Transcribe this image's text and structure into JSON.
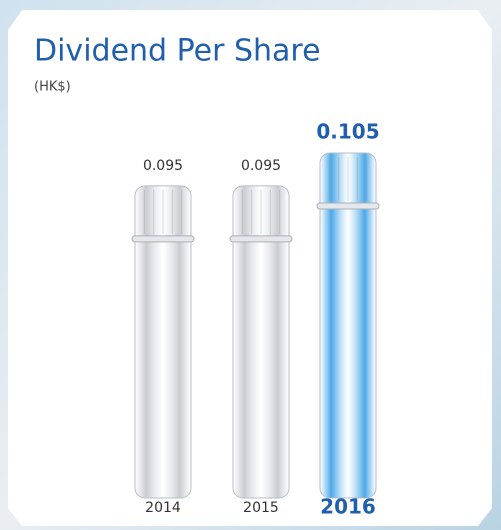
{
  "chart_data": {
    "type": "bar",
    "title": "Dividend Per Share",
    "subtitle": "(HK$)",
    "categories": [
      "2014",
      "2015",
      "2016"
    ],
    "values": [
      0.095,
      0.095,
      0.105
    ],
    "colors": [
      "#c9cdd2",
      "#c9cdd2",
      "#4aa8e8"
    ],
    "label_colors": [
      "#333333",
      "#333333",
      "#1f5fae"
    ]
  }
}
